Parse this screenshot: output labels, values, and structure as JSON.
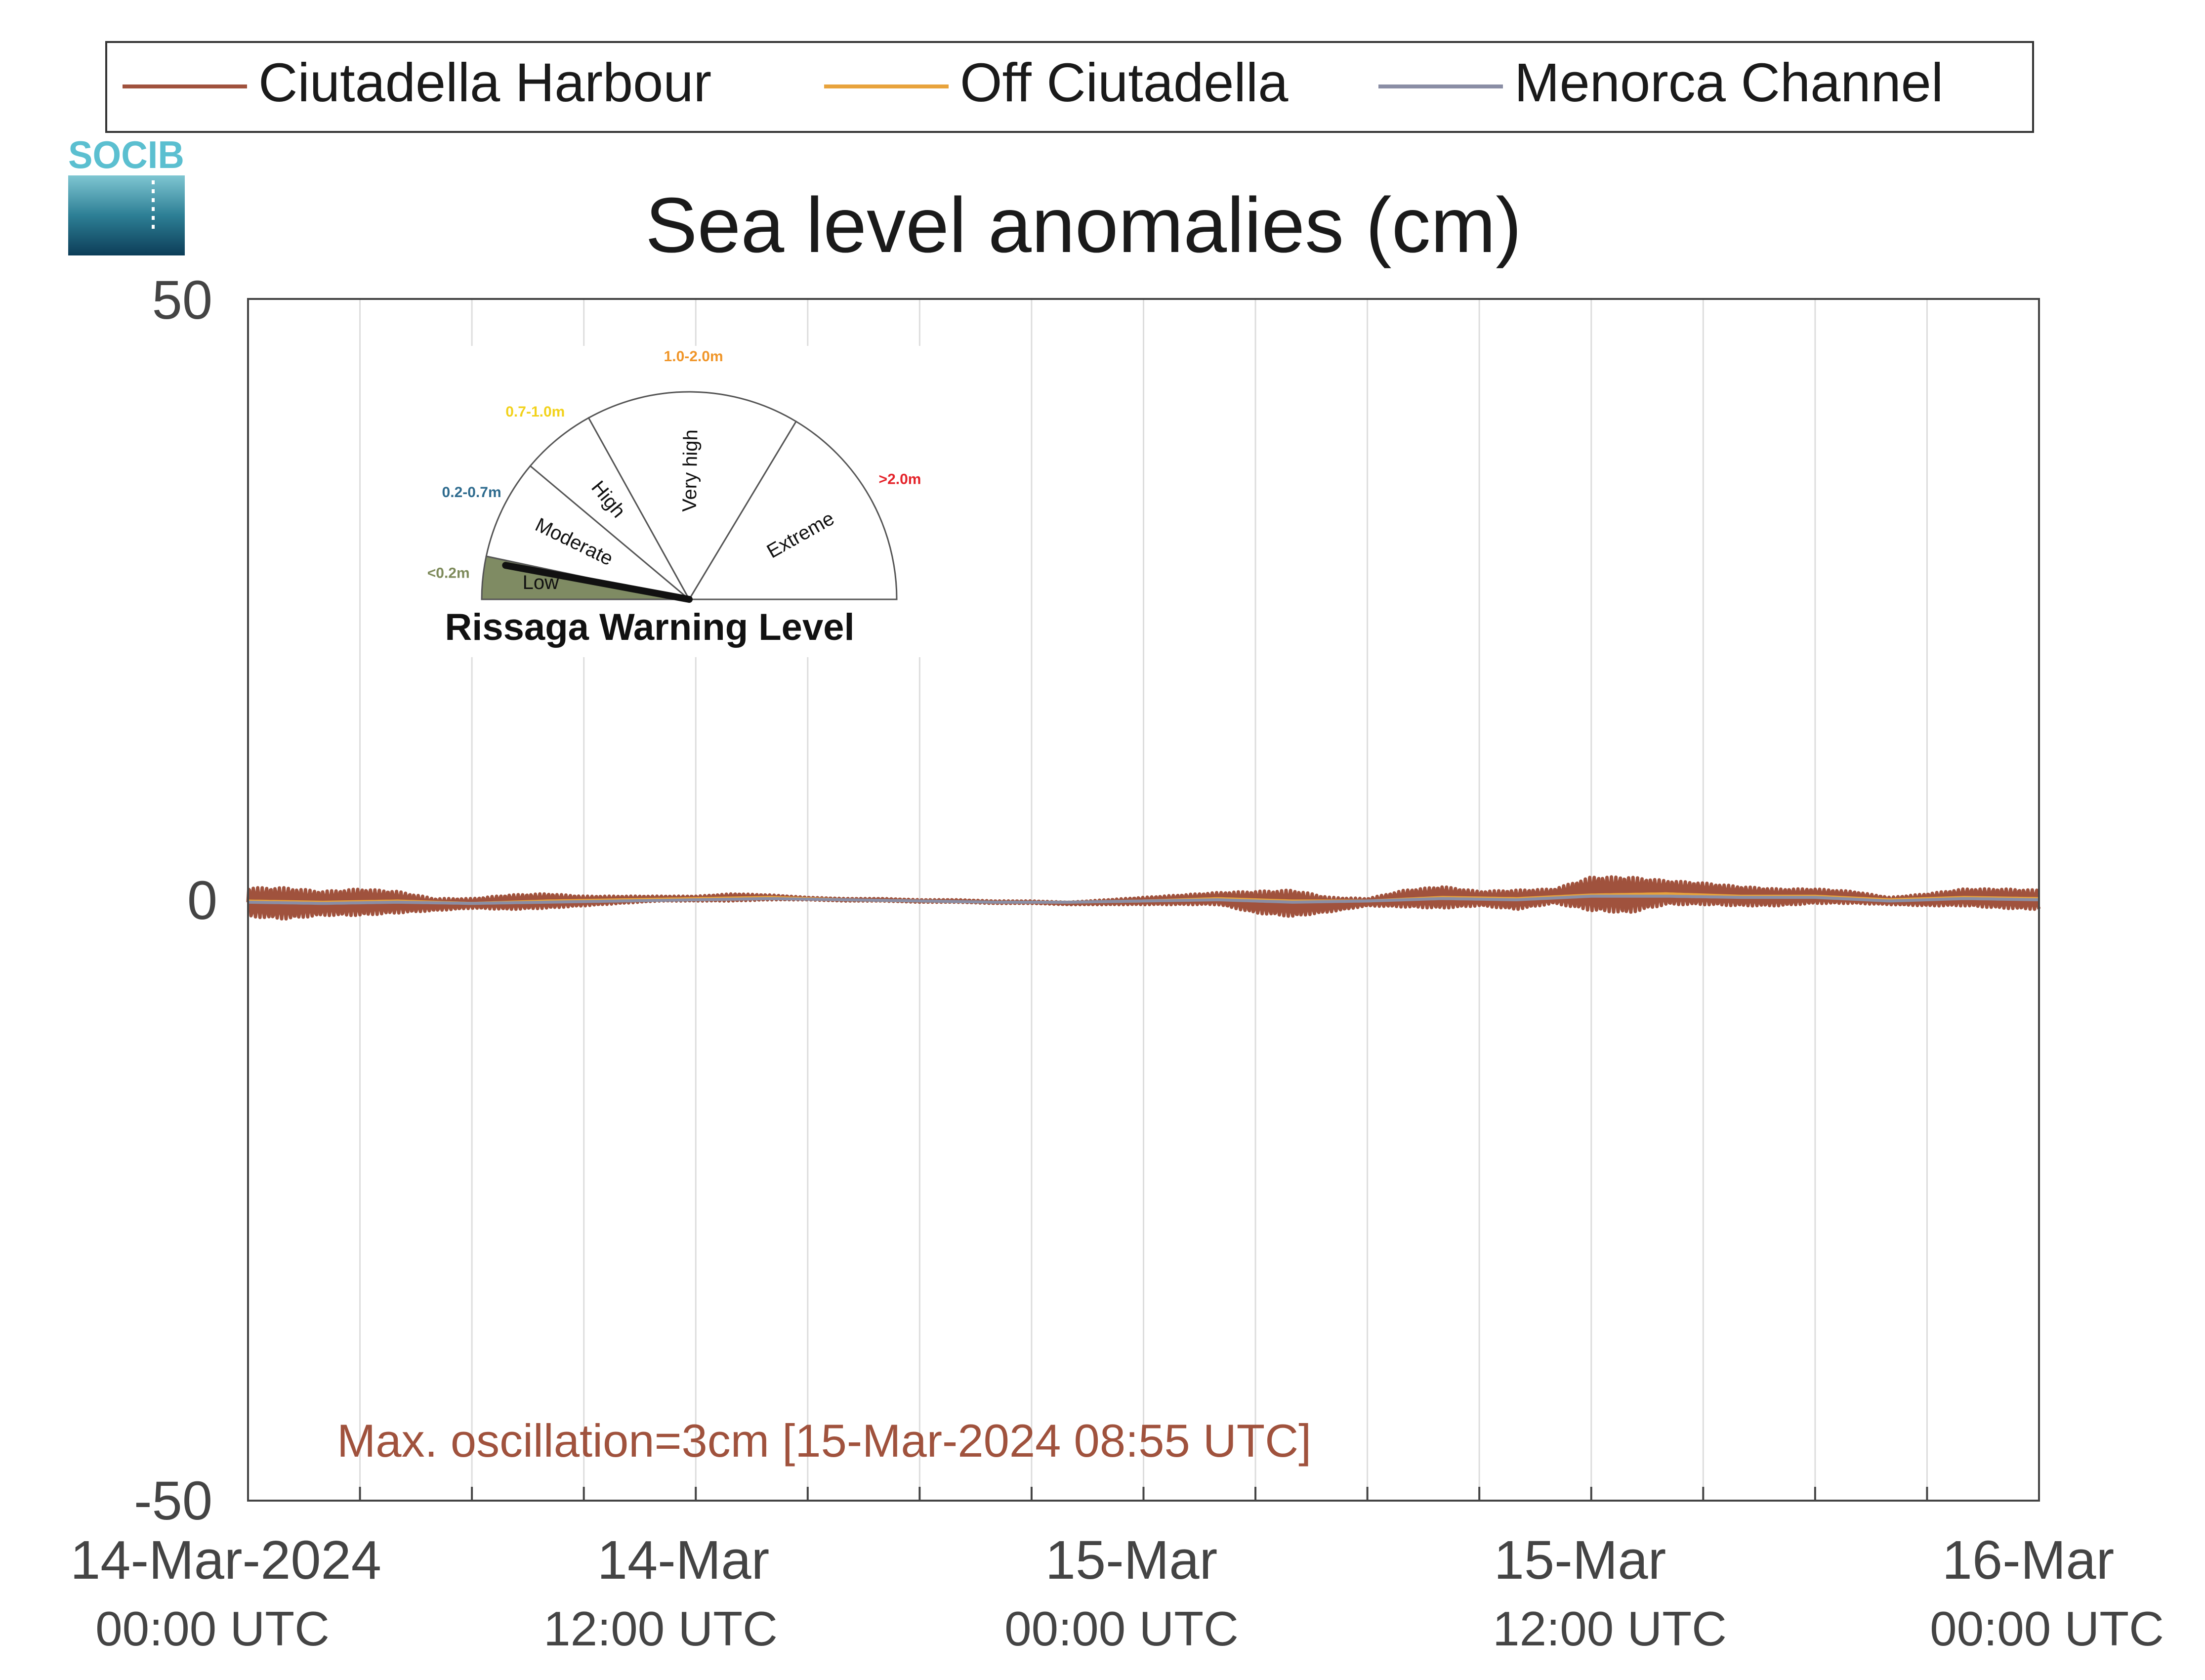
{
  "chart_data": {
    "type": "line",
    "title": "Sea level anomalies (cm)",
    "xlabel": "",
    "ylabel": "",
    "xlim": [
      "2024-03-14 00:00",
      "2024-03-16 00:00"
    ],
    "ylim": [
      -50,
      50
    ],
    "y_ticks": [
      "50",
      "0",
      "-50"
    ],
    "x_tick_labels": [
      {
        "date": "14-Mar-2024",
        "time": "00:00 UTC"
      },
      {
        "date": "14-Mar",
        "time": "12:00 UTC"
      },
      {
        "date": "15-Mar",
        "time": "00:00 UTC"
      },
      {
        "date": "15-Mar",
        "time": "12:00 UTC"
      },
      {
        "date": "16-Mar",
        "time": "00:00 UTC"
      }
    ],
    "grid": "vertical, every 3 hours",
    "legend_position": "top",
    "series": [
      {
        "name": "Ciutadella Harbour",
        "color": "#a0523d",
        "x_hours": [
          0,
          1,
          2,
          3,
          4,
          5,
          6,
          7,
          8,
          9,
          10,
          11,
          12,
          13,
          14,
          15,
          16,
          17,
          18,
          19,
          20,
          21,
          22,
          23,
          24,
          25,
          26,
          27,
          28,
          29,
          30,
          31,
          32,
          33,
          34,
          35,
          36,
          37,
          38,
          39,
          40,
          41,
          42,
          43,
          44,
          45,
          46,
          47,
          48
        ],
        "y": [
          -0.2,
          -0.3,
          -0.3,
          -0.2,
          -0.2,
          -0.4,
          -0.3,
          -0.2,
          -0.1,
          -0.1,
          0.0,
          0.1,
          0.1,
          0.2,
          0.2,
          0.1,
          0.0,
          0.0,
          -0.1,
          -0.1,
          -0.2,
          -0.2,
          -0.3,
          -0.2,
          -0.1,
          0.0,
          0.1,
          -0.2,
          -0.3,
          -0.4,
          -0.2,
          0.1,
          0.2,
          0.1,
          0.0,
          0.3,
          0.5,
          0.4,
          0.6,
          0.5,
          0.3,
          0.2,
          0.3,
          0.2,
          -0.1,
          0.0,
          0.2,
          0.1,
          0.0
        ],
        "oscillation_amplitude": [
          1.2,
          1.3,
          1.0,
          1.1,
          0.9,
          0.5,
          0.4,
          0.6,
          0.6,
          0.4,
          0.3,
          0.2,
          0.2,
          0.3,
          0.2,
          0.1,
          0.1,
          0.1,
          0.1,
          0.1,
          0.1,
          0.1,
          0.1,
          0.2,
          0.3,
          0.4,
          0.5,
          0.9,
          1.1,
          0.6,
          0.3,
          0.7,
          0.9,
          0.6,
          0.8,
          0.6,
          1.4,
          1.5,
          1.0,
          0.9,
          0.8,
          0.7,
          0.6,
          0.5,
          0.3,
          0.5,
          0.7,
          0.8,
          0.8
        ]
      },
      {
        "name": "Off Ciutadella",
        "color": "#e8a33c",
        "x_hours": [
          0,
          2,
          4,
          6,
          8,
          10,
          12,
          14,
          16,
          18,
          20,
          22,
          24,
          26,
          28,
          30,
          32,
          34,
          36,
          38,
          40,
          42,
          44,
          46,
          48
        ],
        "y": [
          -0.1,
          -0.2,
          -0.1,
          -0.3,
          -0.1,
          0.0,
          0.1,
          0.2,
          0.0,
          -0.1,
          -0.2,
          -0.2,
          -0.1,
          0.1,
          -0.1,
          -0.1,
          0.2,
          0.1,
          0.4,
          0.5,
          0.3,
          0.3,
          0.0,
          0.2,
          0.1
        ]
      },
      {
        "name": "Menorca Channel",
        "color": "#8a8ea5",
        "x_hours": [
          0,
          2,
          4,
          6,
          8,
          10,
          12,
          14,
          16,
          18,
          20,
          22,
          24,
          26,
          28,
          30,
          32,
          34,
          36,
          38,
          40,
          42,
          44,
          46,
          48
        ],
        "y": [
          -0.2,
          -0.3,
          -0.2,
          -0.3,
          -0.2,
          -0.1,
          0.0,
          0.1,
          0.0,
          -0.1,
          -0.2,
          -0.2,
          -0.1,
          0.0,
          -0.2,
          -0.1,
          0.1,
          0.0,
          0.3,
          0.3,
          0.2,
          0.2,
          -0.1,
          0.1,
          0.0
        ]
      }
    ],
    "annotation": "Max. oscillation=3cm [15-Mar-2024 08:55 UTC]",
    "annotation_color": "#a0523d"
  },
  "logo": {
    "text": "SOCIB",
    "color": "#5bbfd0"
  },
  "inset": {
    "title": "Rissaga Warning Level",
    "needle_level": "Low",
    "segments": [
      {
        "name": "Low",
        "range": "<0.2m",
        "range_color": "#7d8a5a",
        "fill": "#7f8b63"
      },
      {
        "name": "Moderate",
        "range": "0.2-0.7m",
        "range_color": "#2e6b8e",
        "fill": "#ffffff"
      },
      {
        "name": "High",
        "range": "0.7-1.0m",
        "range_color": "#f2d21c",
        "fill": "#ffffff"
      },
      {
        "name": "Very high",
        "range": "1.0-2.0m",
        "range_color": "#f0962a",
        "fill": "#ffffff"
      },
      {
        "name": "Extreme",
        "range": ">2.0m",
        "range_color": "#e4232a",
        "fill": "#ffffff"
      }
    ]
  }
}
